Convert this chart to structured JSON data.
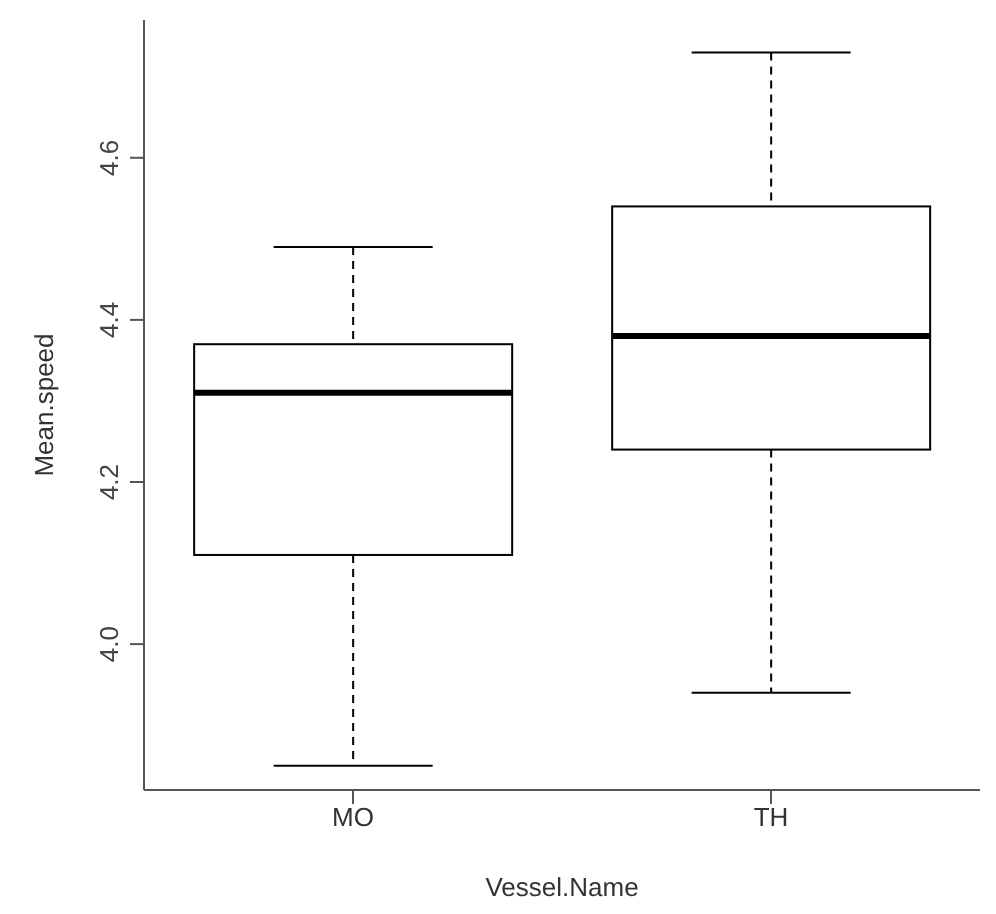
{
  "chart_data": {
    "type": "box",
    "xlabel": "Vessel.Name",
    "ylabel": "Mean.speed",
    "categories": [
      "MO",
      "TH"
    ],
    "boxes": [
      {
        "low": 3.85,
        "q1": 4.11,
        "median": 4.31,
        "q3": 4.37,
        "high": 4.49
      },
      {
        "low": 3.94,
        "q1": 4.24,
        "median": 4.38,
        "q3": 4.54,
        "high": 4.73
      }
    ],
    "ylim": [
      3.82,
      4.77
    ],
    "yticks": [
      {
        "value": 4,
        "label": "4.0"
      },
      {
        "value": 4.2,
        "label": "4.2"
      },
      {
        "value": 4.4,
        "label": "4.4"
      },
      {
        "value": 4.6,
        "label": "4.6"
      }
    ]
  }
}
